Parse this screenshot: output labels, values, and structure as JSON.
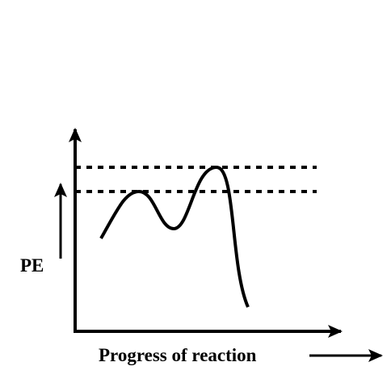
{
  "labels": {
    "y_axis": "PE",
    "x_axis": "Progress of reaction"
  }
}
